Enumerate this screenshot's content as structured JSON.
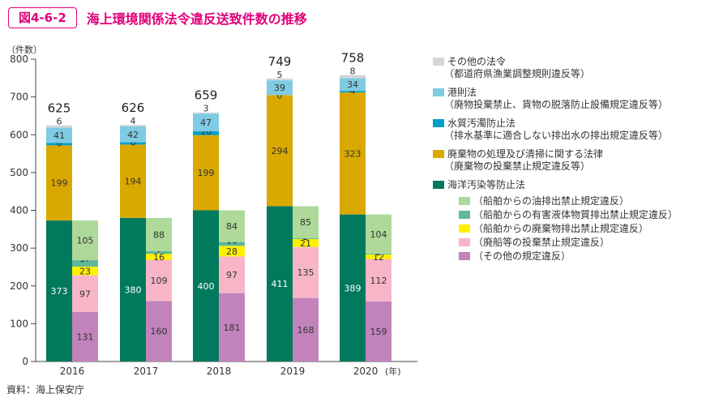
{
  "header": {
    "figure_no": "図4-6-2",
    "title": "海上環境関係法令違反送致件数の推移"
  },
  "source": "資料：海上保安庁",
  "colors": {
    "title_accent": "#e0007a",
    "other_laws": "#d5d6da",
    "port_law": "#7fcbe3",
    "water_pollution": "#00a0c8",
    "waste_law": "#d9a900",
    "marine_pollution": "#00795d",
    "oil": "#aed99a",
    "noxious": "#5fb89a",
    "waste_ship": "#fff000",
    "abandon": "#f7b5c7",
    "other_violation": "#c283bc"
  },
  "chart_data": {
    "type": "bar",
    "title": "海上環境関係法令違反送致件数の推移",
    "ylabel": "（件数）",
    "xlabel_suffix": "(年)",
    "ylim": [
      0,
      800
    ],
    "yticks": [
      "0",
      "100",
      "200",
      "300",
      "400",
      "500",
      "600",
      "700",
      "800"
    ],
    "categories": [
      "2016",
      "2017",
      "2018",
      "2019",
      "2020"
    ],
    "totals": [
      625,
      626,
      659,
      749,
      758
    ],
    "main_stack": [
      {
        "key": "marine_pollution",
        "name": "海洋汚染等防止法",
        "values": [
          373,
          380,
          400,
          411,
          389
        ]
      },
      {
        "key": "waste_law",
        "name": "廃棄物の処理及び清掃に関する法律",
        "values": [
          199,
          194,
          199,
          294,
          323
        ]
      },
      {
        "key": "water_pollution",
        "name": "水質汚濁防止法",
        "values": [
          6,
          6,
          10,
          0,
          4
        ]
      },
      {
        "key": "port_law",
        "name": "港則法",
        "values": [
          41,
          42,
          47,
          39,
          34
        ]
      },
      {
        "key": "other_laws",
        "name": "その他の法令",
        "values": [
          6,
          4,
          3,
          5,
          8
        ]
      }
    ],
    "breakdown_stack": [
      {
        "key": "other_violation",
        "name": "その他の規定違反",
        "values": [
          131,
          160,
          181,
          168,
          159
        ]
      },
      {
        "key": "abandon",
        "name": "廃船等の投棄禁止規定違反",
        "values": [
          97,
          109,
          97,
          135,
          112
        ]
      },
      {
        "key": "waste_ship",
        "name": "船舶からの廃棄物排出禁止規定違反",
        "values": [
          23,
          16,
          28,
          21,
          12
        ]
      },
      {
        "key": "noxious",
        "name": "船舶からの有害液体物質排出禁止規定違反",
        "values": [
          17,
          7,
          10,
          2,
          2
        ]
      },
      {
        "key": "oil",
        "name": "船舶からの油排出禁止規定違反",
        "values": [
          105,
          88,
          84,
          85,
          104
        ]
      }
    ],
    "legend": [
      {
        "key": "other_laws",
        "label": "その他の法令",
        "sub": "（都道府県漁業調整規則違反等）"
      },
      {
        "key": "port_law",
        "label": "港則法",
        "sub": "（廃物投棄禁止、貨物の脱落防止設備規定違反等）"
      },
      {
        "key": "water_pollution",
        "label": "水質汚濁防止法",
        "sub": "（排水基準に適合しない排出水の排出規定違反等）"
      },
      {
        "key": "waste_law",
        "label": "廃棄物の処理及び清掃に関する法律",
        "sub": "（廃棄物の投棄禁止規定違反等）"
      },
      {
        "key": "marine_pollution",
        "label": "海洋汚染等防止法",
        "sub": ""
      },
      {
        "key": "oil",
        "label": "（船舶からの油排出禁止規定違反）",
        "sub": "",
        "indent": true
      },
      {
        "key": "noxious",
        "label": "（船舶からの有害液体物質排出禁止規定違反）",
        "sub": "",
        "indent": true
      },
      {
        "key": "waste_ship",
        "label": "（船舶からの廃棄物排出禁止規定違反）",
        "sub": "",
        "indent": true
      },
      {
        "key": "abandon",
        "label": "（廃船等の投棄禁止規定違反）",
        "sub": "",
        "indent": true
      },
      {
        "key": "other_violation",
        "label": "（その他の規定違反）",
        "sub": "",
        "indent": true
      }
    ],
    "legend_position": "right"
  }
}
